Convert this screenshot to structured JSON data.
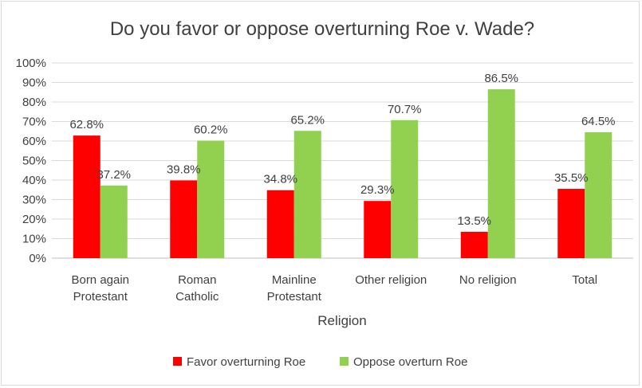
{
  "chart_data": {
    "type": "bar",
    "title": "Do you favor or oppose overturning Roe v. Wade?",
    "xlabel": "Religion",
    "ylabel": "",
    "categories": [
      [
        "Born again",
        "Protestant"
      ],
      [
        "Roman",
        "Catholic"
      ],
      [
        "Mainline",
        "Protestant"
      ],
      [
        "Other religion"
      ],
      [
        "No religion"
      ],
      [
        "Total"
      ]
    ],
    "series": [
      {
        "name": "Favor overturning Roe",
        "color": "#ff0000",
        "values": [
          62.8,
          39.8,
          34.8,
          29.3,
          13.5,
          35.5
        ],
        "labels": [
          "62.8%",
          "39.8%",
          "34.8%",
          "29.3%",
          "13.5%",
          "35.5%"
        ]
      },
      {
        "name": "Oppose overturn Roe",
        "color": "#92d050",
        "values": [
          37.2,
          60.2,
          65.2,
          70.7,
          86.5,
          64.5
        ],
        "labels": [
          "37.2%",
          "60.2%",
          "65.2%",
          "70.7%",
          "86.5%",
          "64.5%"
        ]
      }
    ],
    "ylim": [
      0,
      100
    ],
    "yticks": [
      "0%",
      "10%",
      "20%",
      "30%",
      "40%",
      "50%",
      "60%",
      "70%",
      "80%",
      "90%",
      "100%"
    ],
    "gridlines": true,
    "legend_position": "bottom"
  }
}
